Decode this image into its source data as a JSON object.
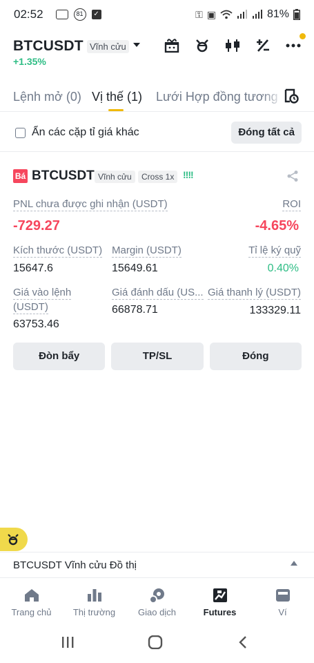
{
  "status_bar": {
    "time": "02:52",
    "left_badge": "81",
    "battery": "81%"
  },
  "header": {
    "symbol": "BTCUSDT",
    "contract_type": "Vĩnh cửu",
    "change": "+1.35%"
  },
  "tabs": [
    {
      "label": "Lệnh mở (0)"
    },
    {
      "label": "Vị thế (1)"
    },
    {
      "label": "Lưới Hợp đồng tương l"
    }
  ],
  "filter": {
    "hide_pairs_label": "Ẩn các cặp tỉ giá khác",
    "close_all_label": "Đóng tất cả"
  },
  "position": {
    "side_tag": "Bá",
    "symbol": "BTCUSDT",
    "contract_type": "Vĩnh cửu",
    "margin_mode": "Cross 1x",
    "pnl_label": "PNL chưa được ghi nhận (USDT)",
    "pnl_value": "-729.27",
    "roi_label": "ROI",
    "roi_value": "-4.65%",
    "size_label": "Kích thước (USDT)",
    "size_value": "15647.6",
    "margin_label": "Margin (USDT)",
    "margin_value": "15649.61",
    "margin_ratio_label": "Tỉ lệ ký quỹ",
    "margin_ratio_value": "0.40%",
    "entry_label_1": "Giá vào lệnh",
    "entry_label_2": "(USDT)",
    "entry_value": "63753.46",
    "mark_label": "Giá đánh dấu (US...",
    "mark_value": "66878.71",
    "liq_label": "Giá thanh lý (USDT)",
    "liq_value": "133329.11"
  },
  "actions": {
    "leverage_label": "Đòn bẩy",
    "tpsl_label": "TP/SL",
    "close_label": "Đóng"
  },
  "chart_bar": {
    "label": "BTCUSDT Vĩnh cửu Đồ thị"
  },
  "bottom_nav": [
    {
      "label": "Trang chủ",
      "icon": "home-icon"
    },
    {
      "label": "Thị trường",
      "icon": "market-icon"
    },
    {
      "label": "Giao dịch",
      "icon": "trade-icon"
    },
    {
      "label": "Futures",
      "icon": "futures-icon"
    },
    {
      "label": "Ví",
      "icon": "wallet-icon"
    }
  ],
  "colors": {
    "accent": "#f0b90b",
    "positive": "#2ebd85",
    "negative": "#f6465d"
  }
}
